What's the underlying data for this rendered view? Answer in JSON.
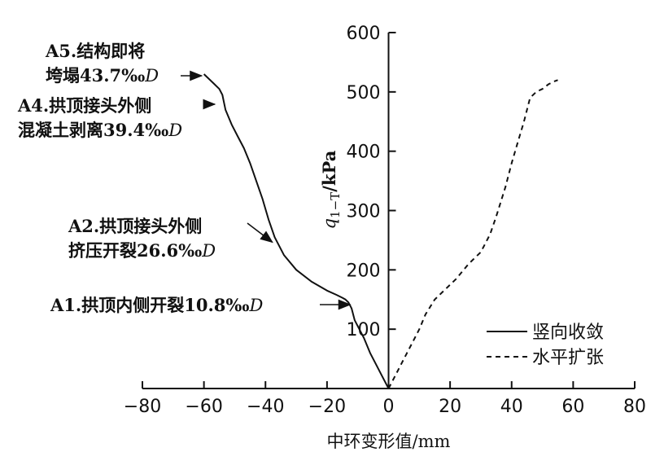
{
  "chart_data": {
    "type": "line",
    "title": "",
    "xlabel": "中环变形值/mm",
    "ylabel": "q1-T/kPa",
    "ylabel_main": "q",
    "ylabel_sub": "1−T",
    "ylabel_unit": "/kPa",
    "xlim": [
      -80,
      80
    ],
    "ylim": [
      0,
      600
    ],
    "xticks": [
      -80,
      -60,
      -40,
      -20,
      0,
      20,
      40,
      60,
      80
    ],
    "yticks": [
      100,
      200,
      300,
      400,
      500,
      600
    ],
    "xtick_labels": [
      "−80",
      "−60",
      "−40",
      "−20",
      "0",
      "20",
      "40",
      "60",
      "80"
    ],
    "ytick_labels": [
      "100",
      "200",
      "300",
      "400",
      "500",
      "600"
    ],
    "grid": false,
    "legend_position": "bottom-right",
    "series": [
      {
        "name": "竖向收敛",
        "style": "solid",
        "color": "#111111",
        "x": [
          0,
          -2,
          -4,
          -6,
          -8,
          -9.5,
          -11,
          -12,
          -13,
          -14,
          -15,
          -17,
          -20,
          -25,
          -30,
          -34,
          -37,
          -39,
          -41,
          -43,
          -45,
          -47,
          -49,
          -51,
          -53,
          -54,
          -55,
          -57,
          -59,
          -60
        ],
        "y": [
          0,
          20,
          40,
          60,
          85,
          100,
          115,
          135,
          145,
          150,
          153,
          158,
          165,
          180,
          200,
          225,
          255,
          285,
          320,
          350,
          380,
          405,
          425,
          445,
          470,
          495,
          505,
          515,
          525,
          530
        ]
      },
      {
        "name": "水平扩张",
        "style": "dashed",
        "color": "#111111",
        "x": [
          0,
          2,
          4,
          6,
          8,
          10,
          12,
          15,
          18,
          22,
          26,
          30,
          33,
          35,
          38,
          40,
          42,
          44,
          46,
          48,
          50,
          52,
          54,
          55
        ],
        "y": [
          0,
          20,
          40,
          60,
          80,
          100,
          125,
          150,
          165,
          185,
          210,
          230,
          260,
          290,
          340,
          380,
          415,
          450,
          490,
          500,
          505,
          513,
          518,
          520
        ]
      }
    ],
    "annotations": [
      {
        "lines": [
          "A1.拱顶内侧开裂10.8‰D"
        ],
        "x": -12,
        "y": 140
      },
      {
        "lines": [
          "A2.拱顶接头外侧",
          "挤压开裂26.6‰D"
        ],
        "x": -37,
        "y": 255
      },
      {
        "lines": [
          "A4.拱顶接头外侧",
          "混凝土剥离39.4‰D"
        ],
        "x": -56,
        "y": 478
      },
      {
        "lines": [
          "A5.结构即将",
          "垮塌43.7‰D"
        ],
        "x": -60,
        "y": 527
      }
    ]
  }
}
